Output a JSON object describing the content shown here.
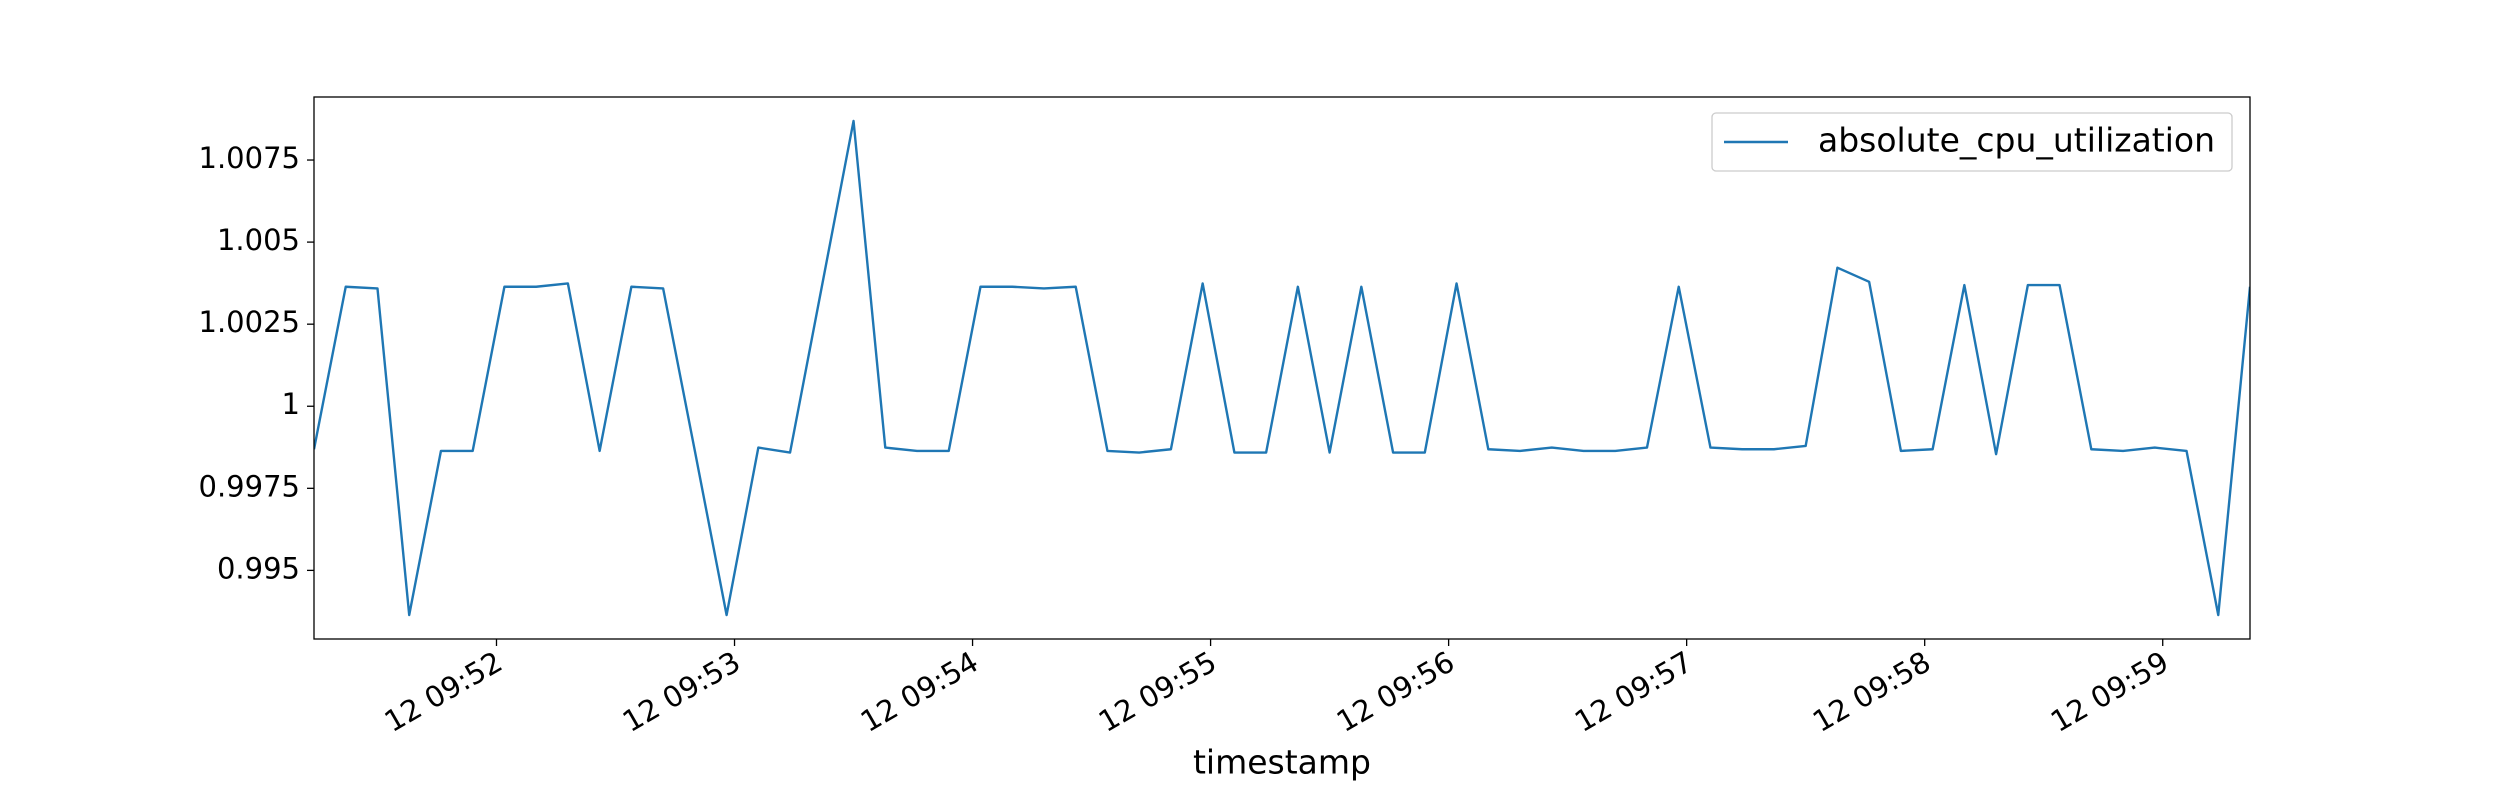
{
  "chart_data": {
    "type": "line",
    "xlabel": "timestamp",
    "x": [
      "12 09:51:14",
      "12 09:51:22",
      "12 09:51:30",
      "12 09:51:38",
      "12 09:51:46",
      "12 09:51:54",
      "12 09:52:02",
      "12 09:52:10",
      "12 09:52:18",
      "12 09:52:26",
      "12 09:52:34",
      "12 09:52:42",
      "12 09:52:50",
      "12 09:52:58",
      "12 09:53:06",
      "12 09:53:14",
      "12 09:53:22",
      "12 09:53:30",
      "12 09:53:38",
      "12 09:53:46",
      "12 09:53:54",
      "12 09:54:02",
      "12 09:54:10",
      "12 09:54:18",
      "12 09:54:26",
      "12 09:54:34",
      "12 09:54:42",
      "12 09:54:50",
      "12 09:54:58",
      "12 09:55:06",
      "12 09:55:14",
      "12 09:55:22",
      "12 09:55:30",
      "12 09:55:38",
      "12 09:55:46",
      "12 09:55:54",
      "12 09:56:02",
      "12 09:56:10",
      "12 09:56:18",
      "12 09:56:26",
      "12 09:56:34",
      "12 09:56:42",
      "12 09:56:50",
      "12 09:56:58",
      "12 09:57:06",
      "12 09:57:14",
      "12 09:57:22",
      "12 09:57:30",
      "12 09:57:38",
      "12 09:57:46",
      "12 09:57:54",
      "12 09:58:02",
      "12 09:58:10",
      "12 09:58:18",
      "12 09:58:26",
      "12 09:58:34",
      "12 09:58:42",
      "12 09:58:50",
      "12 09:58:58",
      "12 09:59:06",
      "12 09:59:14",
      "12 09:59:22"
    ],
    "series": [
      {
        "name": "absolute_cpu_utilization",
        "color": "#1f77b4",
        "values": [
          0.99869,
          1.00364,
          1.00359,
          0.99364,
          0.99864,
          0.99864,
          1.00364,
          1.00364,
          1.00374,
          0.99864,
          1.00364,
          1.00359,
          0.99864,
          0.99364,
          0.99874,
          0.99859,
          1.00364,
          1.00869,
          0.99874,
          0.99864,
          0.99864,
          1.00364,
          1.00364,
          1.00359,
          1.00364,
          0.99864,
          0.99859,
          0.99869,
          1.00374,
          0.99859,
          0.99859,
          1.00364,
          0.99859,
          1.00364,
          0.99859,
          0.99859,
          1.00374,
          0.99869,
          0.99864,
          0.99874,
          0.99864,
          0.99864,
          0.99874,
          1.00364,
          0.99874,
          0.99869,
          0.99869,
          0.99879,
          1.00422,
          1.00379,
          0.99864,
          0.99869,
          1.00369,
          0.99854,
          1.00369,
          1.00369,
          0.99869,
          0.99864,
          0.99874,
          0.99864,
          0.99364,
          1.00364
        ]
      }
    ],
    "xlim": [
      "12 09:51:14",
      "12 09:59:22"
    ],
    "xticks": [
      "12 09:52",
      "12 09:53",
      "12 09:54",
      "12 09:55",
      "12 09:56",
      "12 09:57",
      "12 09:58",
      "12 09:59"
    ],
    "ylim": [
      0.99291,
      1.00942
    ],
    "yticks": [
      0.995,
      0.9975,
      1.0,
      1.0025,
      1.005,
      1.0075
    ],
    "legend": "upper right",
    "grid": false
  }
}
